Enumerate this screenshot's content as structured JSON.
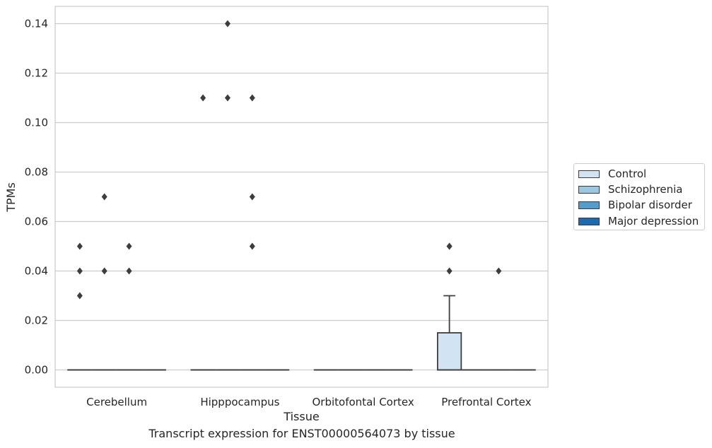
{
  "caption": "Transcript expression for ENST00000564073 by tissue",
  "chart_data": {
    "type": "box",
    "xlabel": "Tissue",
    "ylabel": "TPMs",
    "ylim": [
      -0.007,
      0.147
    ],
    "yticks": [
      0.0,
      0.02,
      0.04,
      0.06,
      0.08,
      0.1,
      0.12,
      0.14
    ],
    "ytick_labels": [
      "0.00",
      "0.02",
      "0.04",
      "0.06",
      "0.08",
      "0.10",
      "0.12",
      "0.14"
    ],
    "grid": "horizontal",
    "legend_position": "right",
    "categories": [
      "Cerebellum",
      "Hipppocampus",
      "Orbitofontal Cortex",
      "Prefrontal Cortex"
    ],
    "series": [
      {
        "name": "Control",
        "color": "#d2e3f3",
        "boxes": [
          {
            "q1": 0,
            "median": 0,
            "q3": 0,
            "whisker_low": 0,
            "whisker_high": 0,
            "outliers": [
              0.03,
              0.04,
              0.05
            ]
          },
          {
            "q1": 0,
            "median": 0,
            "q3": 0,
            "whisker_low": 0,
            "whisker_high": 0,
            "outliers": [
              0.11
            ]
          },
          {
            "q1": 0,
            "median": 0,
            "q3": 0,
            "whisker_low": 0,
            "whisker_high": 0,
            "outliers": []
          },
          {
            "q1": 0,
            "median": 0,
            "q3": 0.015,
            "whisker_low": 0,
            "whisker_high": 0.03,
            "outliers": [
              0.04,
              0.05,
              0.05
            ]
          }
        ]
      },
      {
        "name": "Schizophrenia",
        "color": "#9ac8e0",
        "boxes": [
          {
            "q1": 0,
            "median": 0,
            "q3": 0,
            "whisker_low": 0,
            "whisker_high": 0,
            "outliers": [
              0.04,
              0.07
            ]
          },
          {
            "q1": 0,
            "median": 0,
            "q3": 0,
            "whisker_low": 0,
            "whisker_high": 0,
            "outliers": [
              0.11,
              0.14
            ]
          },
          {
            "q1": 0,
            "median": 0,
            "q3": 0,
            "whisker_low": 0,
            "whisker_high": 0,
            "outliers": []
          },
          {
            "q1": 0,
            "median": 0,
            "q3": 0,
            "whisker_low": 0,
            "whisker_high": 0,
            "outliers": []
          }
        ]
      },
      {
        "name": "Bipolar disorder",
        "color": "#529dcc",
        "boxes": [
          {
            "q1": 0,
            "median": 0,
            "q3": 0,
            "whisker_low": 0,
            "whisker_high": 0,
            "outliers": [
              0.04,
              0.05
            ]
          },
          {
            "q1": 0,
            "median": 0,
            "q3": 0,
            "whisker_low": 0,
            "whisker_high": 0,
            "outliers": [
              0.05,
              0.07,
              0.11
            ]
          },
          {
            "q1": 0,
            "median": 0,
            "q3": 0,
            "whisker_low": 0,
            "whisker_high": 0,
            "outliers": []
          },
          {
            "q1": 0,
            "median": 0,
            "q3": 0,
            "whisker_low": 0,
            "whisker_high": 0,
            "outliers": [
              0.04
            ]
          }
        ]
      },
      {
        "name": "Major depression",
        "color": "#1c6aaf",
        "boxes": [
          {
            "q1": 0,
            "median": 0,
            "q3": 0,
            "whisker_low": 0,
            "whisker_high": 0,
            "outliers": []
          },
          {
            "q1": 0,
            "median": 0,
            "q3": 0,
            "whisker_low": 0,
            "whisker_high": 0,
            "outliers": []
          },
          {
            "q1": 0,
            "median": 0,
            "q3": 0,
            "whisker_low": 0,
            "whisker_high": 0,
            "outliers": []
          },
          {
            "q1": 0,
            "median": 0,
            "q3": 0,
            "whisker_low": 0,
            "whisker_high": 0,
            "outliers": []
          }
        ]
      }
    ]
  }
}
